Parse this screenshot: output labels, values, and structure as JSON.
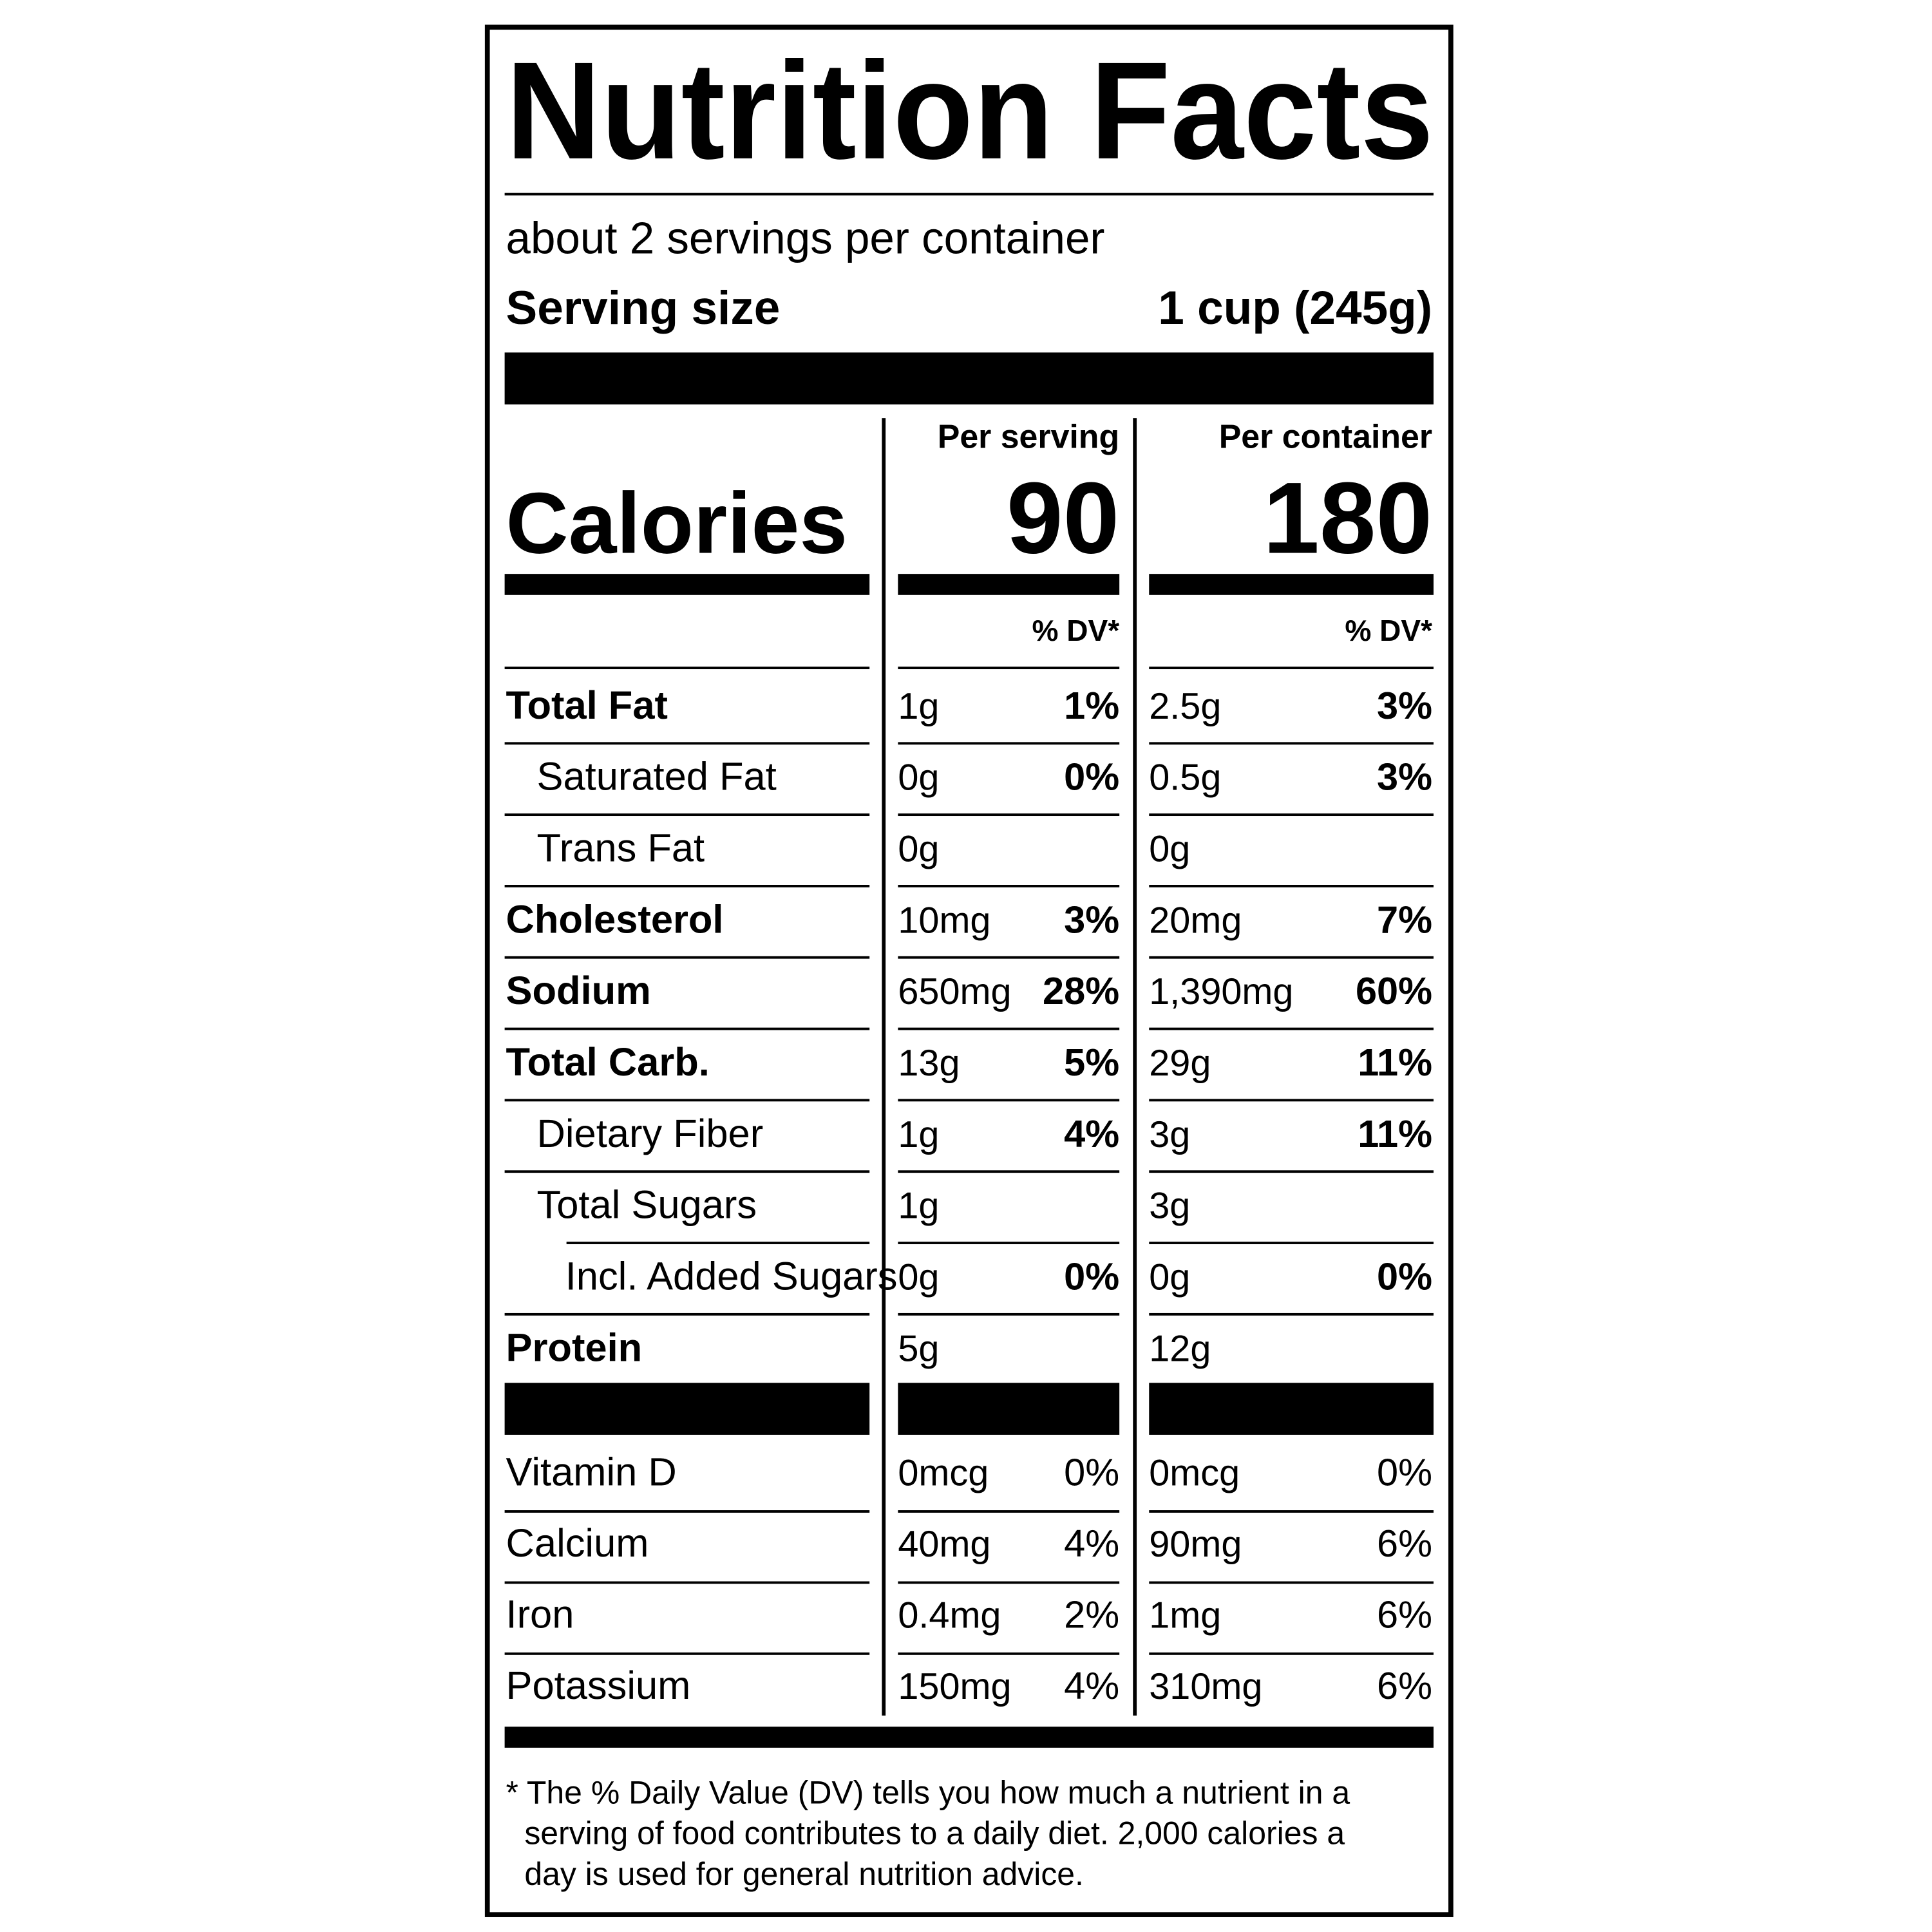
{
  "title": "Nutrition Facts",
  "servings": "about 2 servings per container",
  "serving_size": {
    "label": "Serving size",
    "value": "1 cup (245g)"
  },
  "columns": [
    "Per serving",
    "Per container"
  ],
  "calories": {
    "label": "Calories",
    "values": [
      "90",
      "180"
    ]
  },
  "dv_header": "% DV*",
  "nutrients": [
    {
      "name": "Total Fat",
      "serving": [
        "1g",
        "1%"
      ],
      "container": [
        "2.5g",
        "3%"
      ]
    },
    {
      "name": "Saturated Fat",
      "serving": [
        "0g",
        "0%"
      ],
      "container": [
        "0.5g",
        "3%"
      ]
    },
    {
      "name": "Trans Fat",
      "serving": [
        "0g",
        null
      ],
      "container": [
        "0g",
        null
      ]
    },
    {
      "name": "Cholesterol",
      "serving": [
        "10mg",
        "3%"
      ],
      "container": [
        "20mg",
        "7%"
      ]
    },
    {
      "name": "Sodium",
      "serving": [
        "650mg",
        "28%"
      ],
      "container": [
        "1,390mg",
        "60%"
      ]
    },
    {
      "name": "Total Carb.",
      "serving": [
        "13g",
        "5%"
      ],
      "container": [
        "29g",
        "11%"
      ]
    },
    {
      "name": "Dietary Fiber",
      "serving": [
        "1g",
        "4%"
      ],
      "container": [
        "3g",
        "11%"
      ]
    },
    {
      "name": "Total Sugars",
      "serving": [
        "1g",
        null
      ],
      "container": [
        "3g",
        null
      ]
    },
    {
      "name": "Incl. Added Sugars",
      "serving": [
        "0g",
        "0%"
      ],
      "container": [
        "0g",
        "0%"
      ]
    },
    {
      "name": "Protein",
      "serving": [
        "5g",
        null
      ],
      "container": [
        "12g",
        null
      ]
    }
  ],
  "vitamins": [
    {
      "name": "Vitamin D",
      "serving": [
        "0mcg",
        "0%"
      ],
      "container": [
        "0mcg",
        "0%"
      ]
    },
    {
      "name": "Calcium",
      "serving": [
        "40mg",
        "4%"
      ],
      "container": [
        "90mg",
        "6%"
      ]
    },
    {
      "name": "Iron",
      "serving": [
        "0.4mg",
        "2%"
      ],
      "container": [
        "1mg",
        "6%"
      ]
    },
    {
      "name": "Potassium",
      "serving": [
        "150mg",
        "4%"
      ],
      "container": [
        "310mg",
        "6%"
      ]
    }
  ],
  "footnote": [
    "* The % Daily Value (DV) tells you how much a nutrient in a",
    "serving of food contributes to a daily diet. 2,000 calories a",
    "day is used for general nutrition advice."
  ]
}
